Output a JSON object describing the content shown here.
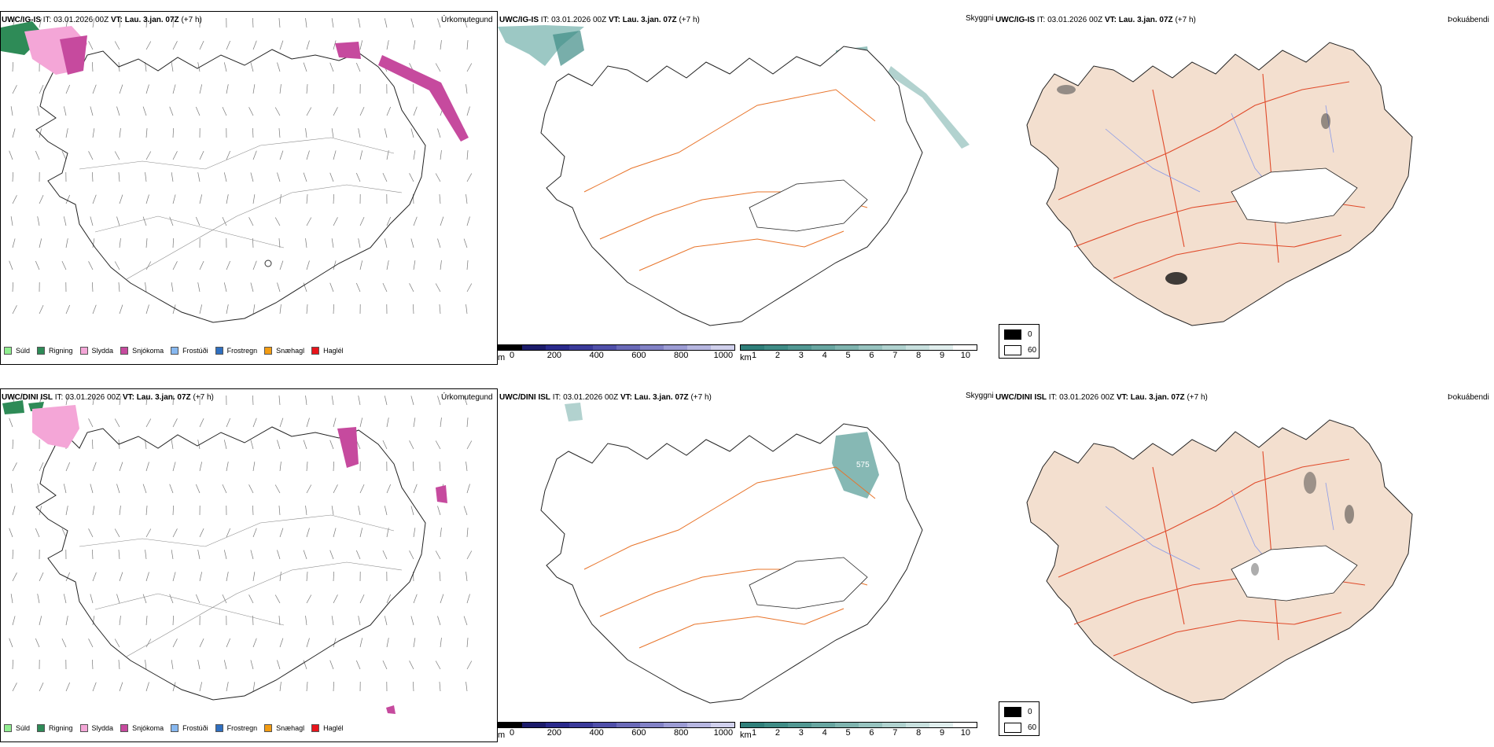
{
  "rows": [
    {
      "model": "UWC/IG-IS",
      "it_label": "IT:",
      "it_value": "03.01.2026 00Z",
      "vt_label": "VT:",
      "vt_value": "Lau. 3.jan. 07Z",
      "lead": "(+7 h)"
    },
    {
      "model": "UWC/DINI ISL",
      "it_label": "IT:",
      "it_value": "03.01.2026 00Z",
      "vt_label": "VT:",
      "vt_value": "Lau. 3.jan. 07Z",
      "lead": "(+7 h)"
    }
  ],
  "panel_types": {
    "precip": "Úrkomutegund",
    "visibility": "Skyggni",
    "fog": "Þokuábendi"
  },
  "precip_legend": [
    {
      "label": "Súld",
      "color": "#90ee90"
    },
    {
      "label": "Rigning",
      "color": "#2e8b57"
    },
    {
      "label": "Slydda",
      "color": "#f4a6d7"
    },
    {
      "label": "Snjókoma",
      "color": "#c64a9e"
    },
    {
      "label": "Frostúði",
      "color": "#87b8f0"
    },
    {
      "label": "Frostregn",
      "color": "#2f6fc0"
    },
    {
      "label": "Snæhagl",
      "color": "#f39c12"
    },
    {
      "label": "Haglél",
      "color": "#e8141b"
    }
  ],
  "cloud_base_bar": {
    "unit": "m",
    "ticks": [
      "0",
      "200",
      "400",
      "600",
      "800",
      "1000"
    ],
    "colors": [
      "#000000",
      "#1c1c6b",
      "#2a2a8c",
      "#3b3b9a",
      "#5050aa",
      "#6a6ab8",
      "#8282c6",
      "#9c9cd4",
      "#b6b6e0",
      "#d0d0ec"
    ]
  },
  "visibility_bar": {
    "unit": "km",
    "ticks": [
      "1",
      "2",
      "3",
      "4",
      "5",
      "6",
      "7",
      "8",
      "9",
      "10"
    ],
    "colors": [
      "#2f7f7a",
      "#3f8c86",
      "#529893",
      "#68a6a1",
      "#7fb4af",
      "#97c3bf",
      "#b0d2cf",
      "#c8e0de",
      "#e0eeed",
      "#ffffff"
    ]
  },
  "visibility_label": "575",
  "fog_legend": [
    {
      "label": "0",
      "color": "#000000"
    },
    {
      "label": "60",
      "color": "#ffffff"
    }
  ],
  "colors": {
    "land_fog": "#f3dfcf",
    "roads": "#e8742a",
    "rivers": "#8a9ae8",
    "glacier": "#ffffff",
    "coast": "#222222",
    "snow": "#c64a9e",
    "sleet": "#f4a6d7",
    "rain": "#2e8b57",
    "vis_low": "#5aa39c"
  }
}
